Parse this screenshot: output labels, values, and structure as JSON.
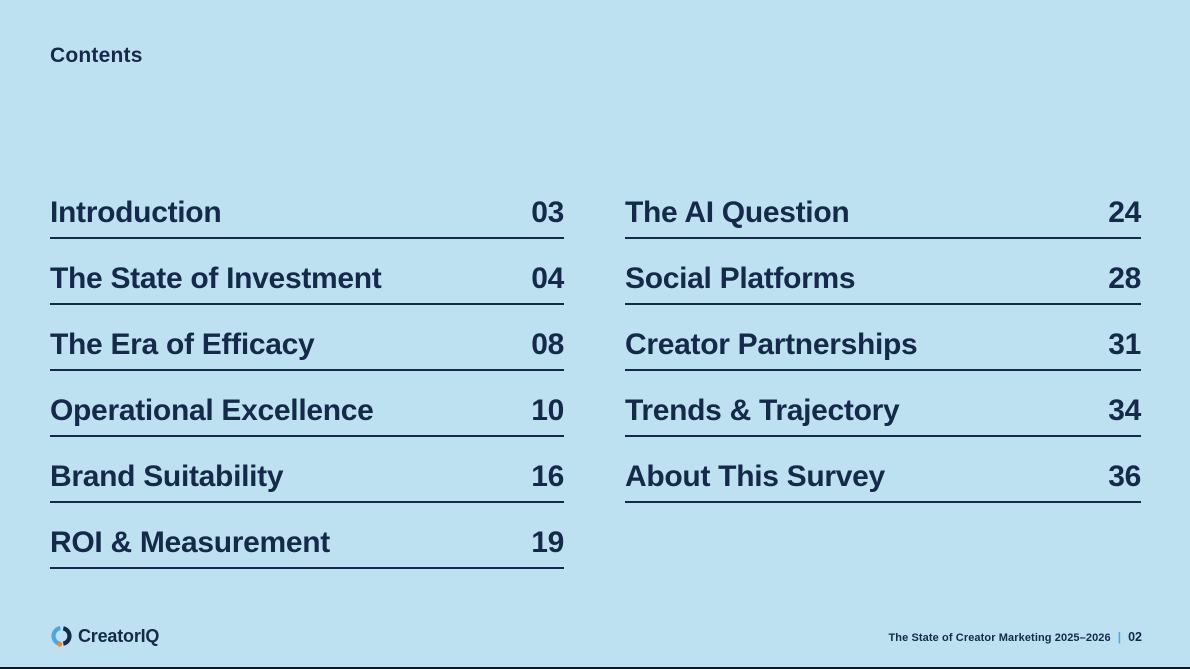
{
  "header": {
    "title": "Contents"
  },
  "toc": {
    "columns": [
      {
        "entries": [
          {
            "label": "Introduction",
            "page": "03"
          },
          {
            "label": "The State of Investment",
            "page": "04"
          },
          {
            "label": "The Era of Efficacy",
            "page": "08"
          },
          {
            "label": "Operational Excellence",
            "page": "10"
          },
          {
            "label": "Brand Suitability",
            "page": "16"
          },
          {
            "label": "ROI & Measurement",
            "page": "19"
          }
        ]
      },
      {
        "entries": [
          {
            "label": "The AI Question",
            "page": "24"
          },
          {
            "label": "Social Platforms",
            "page": "28"
          },
          {
            "label": "Creator Partnerships",
            "page": "31"
          },
          {
            "label": "Trends & Trajectory",
            "page": "34"
          },
          {
            "label": "About This Survey",
            "page": "36"
          }
        ]
      }
    ]
  },
  "footer": {
    "brand": "CreatorIQ",
    "doc_title": "The State of Creator Marketing 2025–2026",
    "separator": "|",
    "page_number": "02"
  },
  "colors": {
    "background": "#bee1f2",
    "text_navy": "#15294b",
    "accent_blue": "#4aa9e0",
    "accent_orange": "#f6871f"
  }
}
